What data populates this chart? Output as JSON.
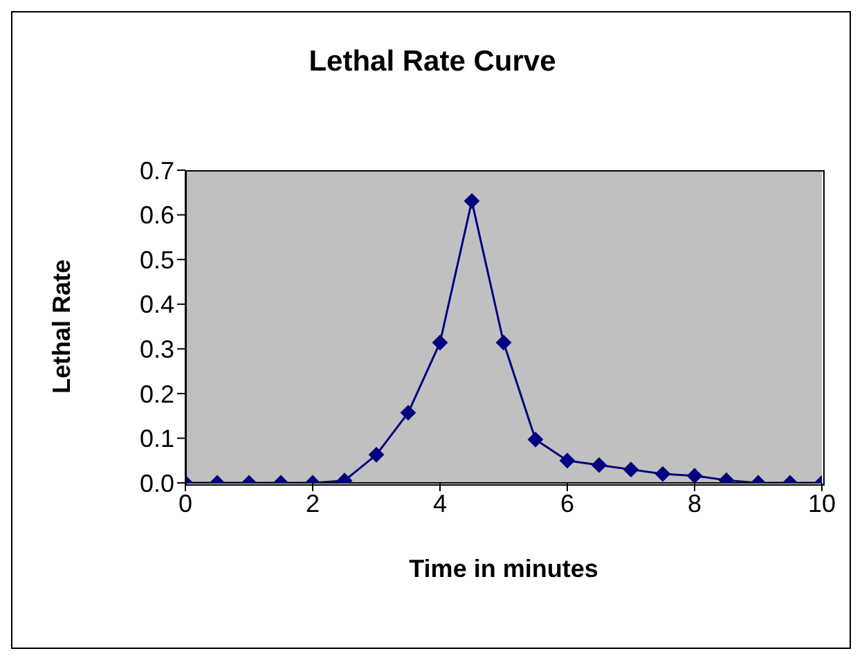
{
  "chart_data": {
    "type": "line",
    "title": "Lethal Rate Curve",
    "xlabel": "Time in minutes",
    "ylabel": "Lethal Rate",
    "x": [
      0,
      0.5,
      1,
      1.5,
      2,
      2.5,
      3,
      3.5,
      4,
      4.5,
      5,
      5.5,
      6,
      6.5,
      7,
      7.5,
      8,
      8.5,
      9,
      9.5,
      10
    ],
    "series": [
      {
        "color": "#000080",
        "values": [
          0,
          0,
          0,
          0,
          0,
          0.005,
          0.063,
          0.157,
          0.314,
          0.631,
          0.314,
          0.097,
          0.05,
          0.04,
          0.03,
          0.02,
          0.016,
          0.006,
          0,
          0,
          0
        ]
      }
    ],
    "xlim": [
      0,
      10
    ],
    "xticks": [
      0,
      2,
      4,
      6,
      8,
      10
    ],
    "ylim": [
      0,
      0.7
    ],
    "yticks": [
      {
        "value": 0,
        "label": "0.0"
      },
      0.1,
      0.2,
      0.3,
      0.4,
      0.5,
      0.6,
      0.7
    ],
    "marker": "diamond",
    "line_style": "solid",
    "legend": false
  }
}
